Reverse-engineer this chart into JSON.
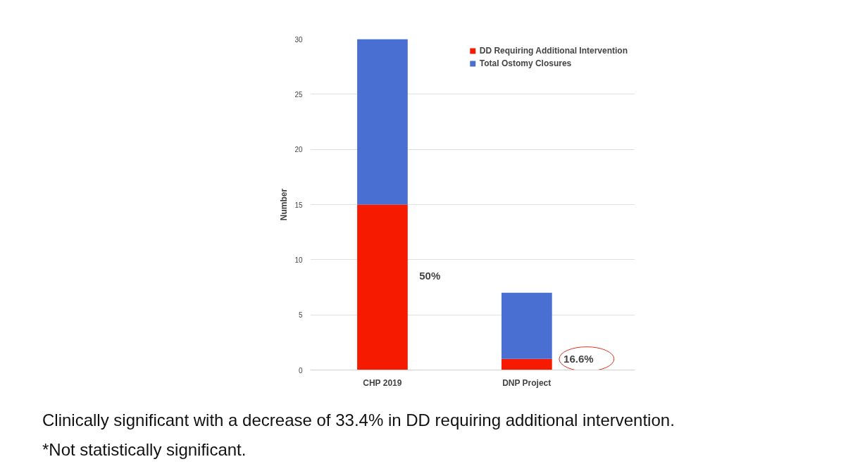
{
  "chart_data": {
    "type": "bar",
    "stacked": true,
    "ylabel": "Number",
    "categories": [
      "CHP 2019",
      "DNP Project"
    ],
    "series": [
      {
        "name": "DD Requiring Additional Intervention",
        "color": "#f61b00",
        "values": [
          15,
          1
        ]
      },
      {
        "name": "Total Ostomy Closures",
        "color": "#4a6fd3",
        "values": [
          15,
          6
        ]
      }
    ],
    "ylim": [
      0,
      30
    ],
    "yticks": [
      0,
      5,
      10,
      15,
      20,
      25,
      30
    ],
    "grid": "y",
    "legend": "top right",
    "annotations": [
      "50%",
      "16.6%",
      "Clinically significant with a decrease of 33.4% in DD requiring additional intervention.",
      "*Not statistically significant."
    ]
  }
}
